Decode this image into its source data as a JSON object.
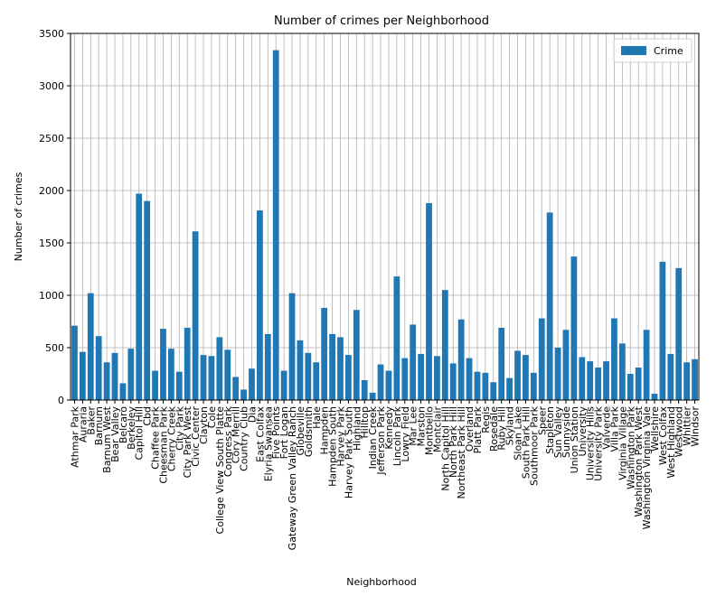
{
  "chart_data": {
    "type": "bar",
    "title": "Number of crimes per Neighborhood",
    "xlabel": "Neighborhood",
    "ylabel": "Number of crimes",
    "categories": [
      "Athmar Park",
      "Auraria",
      "Baker",
      "Barnum",
      "Barnum West",
      "Bear Valley",
      "Belcaro",
      "Berkeley",
      "Capitol Hill",
      "Cbd",
      "Chaffee Park",
      "Cheesman Park",
      "Cherry Creek",
      "City Park",
      "City Park West",
      "Civic Center",
      "Clayton",
      "Cole",
      "College View South Platte",
      "Congress Park",
      "Cory Merrill",
      "Country Club",
      "Dia",
      "East Colfax",
      "Elyria Swansea",
      "Five Points",
      "Fort Logan",
      "Gateway Green Valley Ranch",
      "Globeville",
      "Goldsmith",
      "Hale",
      "Hampden",
      "Hampden South",
      "Harvey Park",
      "Harvey Park South",
      "Highland",
      "Hilltop",
      "Indian Creek",
      "Jefferson Park",
      "Kennedy",
      "Lincoln Park",
      "Lowry Field",
      "Mar Lee",
      "Marston",
      "Montbello",
      "Montclair",
      "North Capitol Hill",
      "North Park Hill",
      "Northeast Park Hill",
      "Overland",
      "Platt Park",
      "Regis",
      "Rosedale",
      "Ruby Hill",
      "Skyland",
      "Sloan Lake",
      "South Park Hill",
      "Southmoor Park",
      "Speer",
      "Stapleton",
      "Sun Valley",
      "Sunnyside",
      "Union Station",
      "University",
      "University Hills",
      "University Park",
      "Valverde",
      "Villa Park",
      "Virginia Village",
      "Washington Park",
      "Washington Park West",
      "Washington Virginia Vale",
      "Wellshire",
      "West Colfax",
      "West Highland",
      "Westwood",
      "Whittier",
      "Windsor"
    ],
    "series": [
      {
        "name": "Crime",
        "color": "#1f77b4",
        "values": [
          710,
          460,
          1020,
          610,
          360,
          450,
          160,
          490,
          1970,
          1900,
          280,
          680,
          490,
          270,
          690,
          1610,
          430,
          420,
          600,
          480,
          220,
          100,
          300,
          1810,
          630,
          3340,
          280,
          1020,
          570,
          450,
          360,
          880,
          630,
          600,
          430,
          860,
          190,
          70,
          340,
          280,
          1180,
          400,
          720,
          440,
          1880,
          420,
          1050,
          350,
          770,
          400,
          270,
          260,
          170,
          690,
          210,
          470,
          430,
          260,
          780,
          1790,
          500,
          670,
          1370,
          410,
          370,
          310,
          370,
          780,
          540,
          250,
          310,
          670,
          60,
          1320,
          440,
          1260,
          360,
          390
        ]
      }
    ],
    "ylim": [
      0,
      3500
    ],
    "yticks": [
      0,
      500,
      1000,
      1500,
      2000,
      2500,
      3000,
      3500
    ],
    "grid": true,
    "legend": "upper right"
  }
}
